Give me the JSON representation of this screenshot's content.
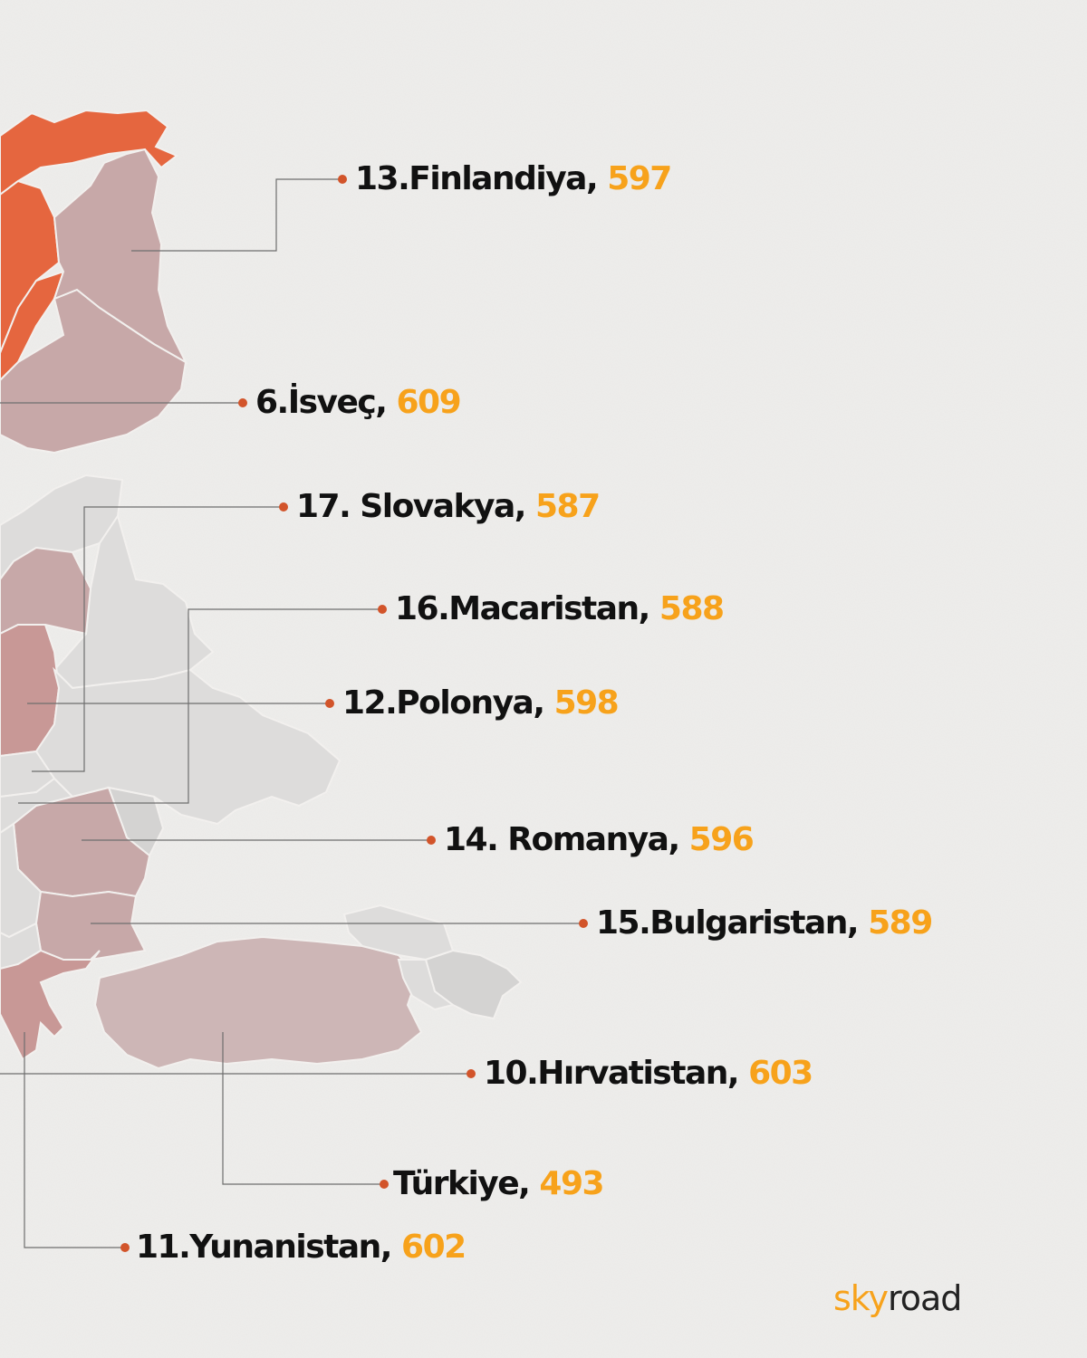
{
  "colors": {
    "background": "#efeeec",
    "label_text": "#111111",
    "value_text": "#f7a21b",
    "leader_line": "#6e6e6e",
    "leader_dot": "#d2542a",
    "rank_high": "#e5663f",
    "rank_mid": "#c89896",
    "rank_low": "#cbb4b4",
    "no_data": "#dddcdb"
  },
  "map": {
    "countries": [
      {
        "id": "finland",
        "label": "13.Finlandiya, ",
        "value": "597"
      },
      {
        "id": "sweden",
        "label": "6.İsveç, ",
        "value": "609"
      },
      {
        "id": "slovakia",
        "label": "17. Slovakya, ",
        "value": "587"
      },
      {
        "id": "hungary",
        "label": "16.Macaristan, ",
        "value": "588"
      },
      {
        "id": "poland",
        "label": "12.Polonya, ",
        "value": "598"
      },
      {
        "id": "romania",
        "label": "14. Romanya, ",
        "value": "596"
      },
      {
        "id": "bulgaria",
        "label": "15.Bulgaristan, ",
        "value": "589"
      },
      {
        "id": "croatia",
        "label": "10.Hırvatistan, ",
        "value": "603"
      },
      {
        "id": "turkey",
        "label": "Türkiye, ",
        "value": "493"
      },
      {
        "id": "greece",
        "label": "11.Yunanistan, ",
        "value": "602"
      }
    ]
  },
  "brand": {
    "part1": "sky",
    "part2": "road"
  }
}
